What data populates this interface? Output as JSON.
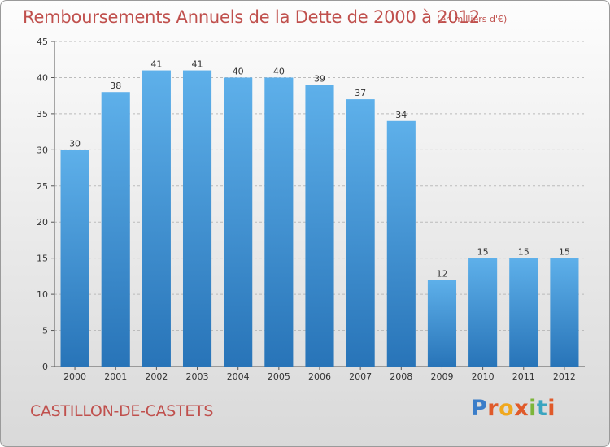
{
  "title": "Remboursements Annuels de la Dette de 2000 à 2012",
  "subtitle": "(en milliers d'€)",
  "commune": "CASTILLON-DE-CASTETS",
  "logo": {
    "text": "Proxiti"
  },
  "colors": {
    "title": "#c0504d",
    "bar_top": "#5eb0ea",
    "bar_bottom": "#2874b8",
    "grid": "#bbbbbb"
  },
  "chart_data": {
    "type": "bar",
    "title": "Remboursements Annuels de la Dette de 2000 à 2012",
    "xlabel": "",
    "ylabel": "",
    "categories": [
      "2000",
      "2001",
      "2002",
      "2003",
      "2004",
      "2005",
      "2006",
      "2007",
      "2008",
      "2009",
      "2010",
      "2011",
      "2012"
    ],
    "values": [
      30,
      38,
      41,
      41,
      40,
      40,
      39,
      37,
      34,
      12,
      15,
      15,
      15
    ],
    "ylim": [
      0,
      45
    ],
    "yticks": [
      0,
      5,
      10,
      15,
      20,
      25,
      30,
      35,
      40,
      45
    ],
    "grid": true,
    "legend": "none"
  }
}
